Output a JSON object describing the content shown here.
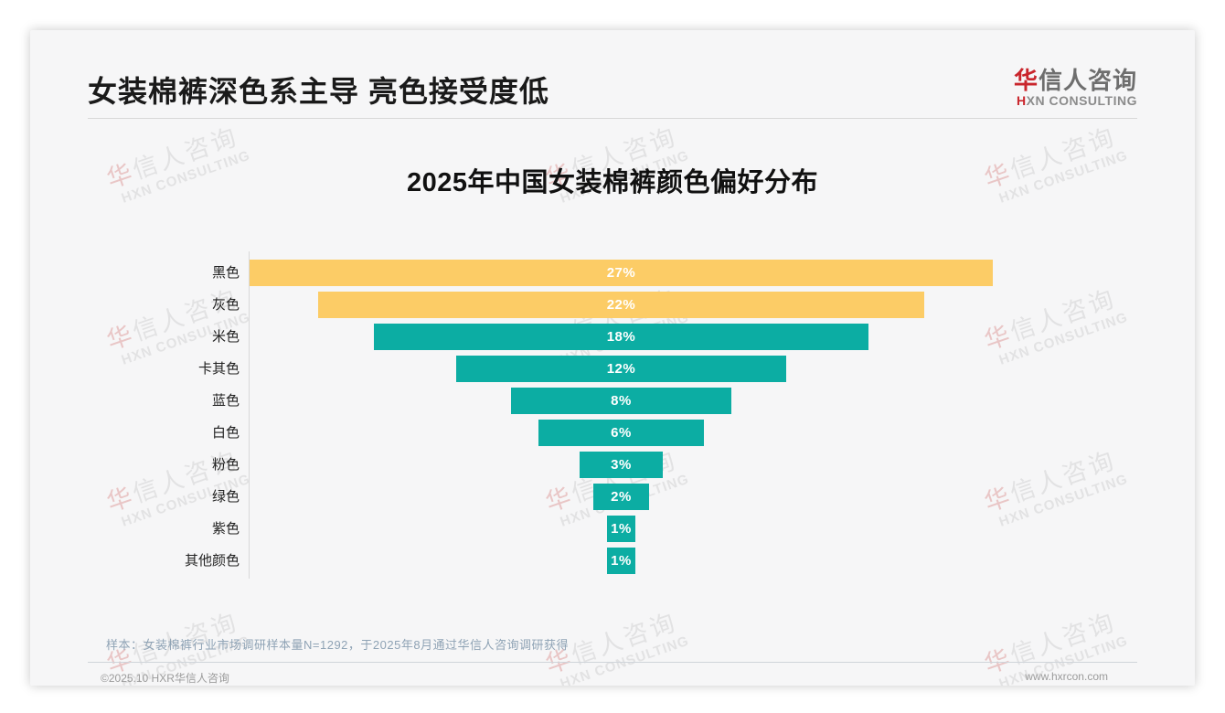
{
  "header": {
    "title": "女装棉裤深色系主导 亮色接受度低",
    "logo": {
      "zh_accent": "华",
      "zh_rest": "信人咨询",
      "en_accent": "H",
      "en_rest": "XN CONSULTING"
    }
  },
  "watermark": {
    "line1_accent": "华",
    "line1_rest": "信人咨询",
    "line2": "HXN CONSULTING"
  },
  "chart_data": {
    "type": "bar",
    "variant": "centered-funnel-horizontal",
    "title": "2025年中国女装棉裤颜色偏好分布",
    "categories": [
      "黑色",
      "灰色",
      "米色",
      "卡其色",
      "蓝色",
      "白色",
      "粉色",
      "绿色",
      "紫色",
      "其他颜色"
    ],
    "values": [
      27,
      22,
      18,
      12,
      8,
      6,
      3,
      2,
      1,
      1
    ],
    "value_labels": [
      "27%",
      "22%",
      "18%",
      "12%",
      "8%",
      "6%",
      "3%",
      "2%",
      "1%",
      "1%"
    ],
    "unit": "%",
    "xlim": [
      0,
      27
    ],
    "grid": false,
    "legend": "none",
    "bar_colors": [
      "#FCCC66",
      "#FCCC66",
      "#0CADA3",
      "#0CADA3",
      "#0CADA3",
      "#0CADA3",
      "#0CADA3",
      "#0CADA3",
      "#0CADA3",
      "#0CADA3"
    ],
    "highlight_color": "#FCCC66",
    "base_color": "#0CADA3",
    "value_label_color": "#FFFFFF"
  },
  "note": "样本：女装棉裤行业市场调研样本量N=1292，于2025年8月通过华信人咨询调研获得",
  "footer": {
    "left": "©2025.10 HXR华信人咨询",
    "right": "www.hxrcon.com"
  }
}
